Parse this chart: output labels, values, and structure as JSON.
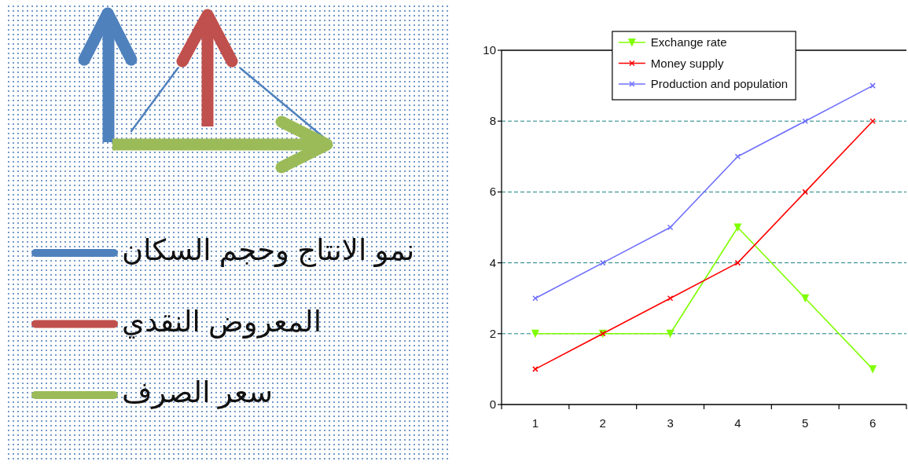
{
  "chart_data": [
    {
      "type": "other",
      "legend": "bottom left",
      "series": [
        {
          "name": "نمو الانتاج وحجم السكان",
          "color": "#4f81bd"
        },
        {
          "name": "المعروض النقدي",
          "color": "#c0504d"
        },
        {
          "name": "سعر الصرف",
          "color": "#9bbb59"
        }
      ]
    },
    {
      "type": "line",
      "categories": [
        "1",
        "2",
        "3",
        "4",
        "5",
        "6"
      ],
      "ylim": [
        0,
        10
      ],
      "yticks": [
        0,
        2,
        4,
        6,
        8,
        10
      ],
      "grid": "y",
      "legend": "top",
      "series": [
        {
          "name": "Exchange rate",
          "color": "#80ff00",
          "marker": "triangle",
          "values": [
            2,
            2,
            2,
            5,
            3,
            1
          ]
        },
        {
          "name": "Money supply",
          "color": "#ff0000",
          "marker": "cross",
          "values": [
            1,
            2,
            3,
            4,
            6,
            8
          ]
        },
        {
          "name": "Production and population",
          "color": "#7070ff",
          "marker": "cross",
          "values": [
            3,
            4,
            5,
            7,
            8,
            9
          ]
        }
      ]
    }
  ]
}
